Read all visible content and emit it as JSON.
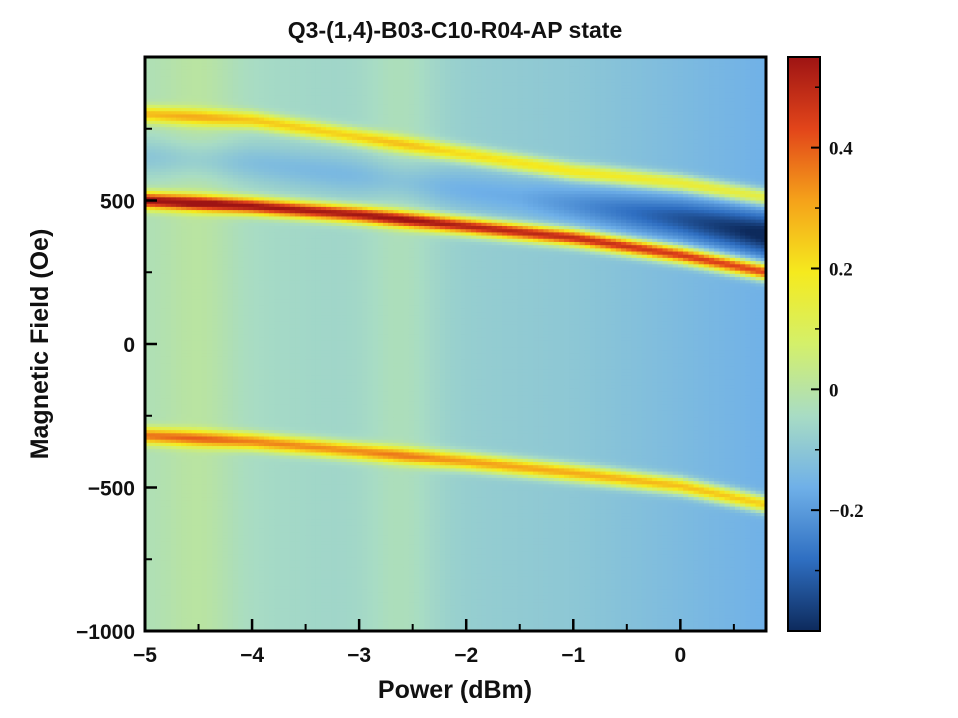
{
  "chart_data": {
    "type": "heatmap",
    "title": "Q3-(1,4)-B03-C10-R04-AP state",
    "xlabel": "Power (dBm)",
    "ylabel": "Magnetic Field (Oe)",
    "xlim": [
      -5,
      0.8
    ],
    "ylim": [
      -1000,
      1000
    ],
    "x_ticks": [
      -5,
      -4,
      -3,
      -2,
      -1,
      0
    ],
    "x_tick_labels": [
      "−5",
      "−4",
      "−3",
      "−2",
      "−1",
      "0"
    ],
    "y_ticks": [
      -1000,
      -500,
      0,
      500
    ],
    "y_tick_labels": [
      "−1000",
      "−500",
      "0",
      "500"
    ],
    "colorbar": {
      "range": [
        -0.4,
        0.55
      ],
      "ticks": [
        -0.2,
        0,
        0.2,
        0.4
      ],
      "tick_labels": [
        "−0.2",
        "0",
        "0.2",
        "0.4"
      ],
      "colormap": "jet",
      "colors": [
        "#0d2a5c",
        "#2f6fc2",
        "#6fb0e8",
        "#a8dcc4",
        "#d4f06a",
        "#f5ea1e",
        "#f5a21a",
        "#e2451a",
        "#9e1414"
      ]
    },
    "background_level": -0.1,
    "bright_columns_dBm": [
      -4.5,
      -2.6
    ],
    "bands": [
      {
        "name": "upper resonance",
        "peak": 0.2,
        "points": [
          [
            -5,
            800
          ],
          [
            -4,
            780
          ],
          [
            -3,
            720
          ],
          [
            -2,
            660
          ],
          [
            -1,
            600
          ],
          [
            0,
            560
          ],
          [
            0.8,
            510
          ]
        ]
      },
      {
        "name": "main resonance",
        "peak": 0.5,
        "points": [
          [
            -5,
            500
          ],
          [
            -4,
            480
          ],
          [
            -3,
            450
          ],
          [
            -2,
            410
          ],
          [
            -1,
            370
          ],
          [
            0,
            310
          ],
          [
            0.8,
            250
          ]
        ]
      },
      {
        "name": "lower resonance",
        "peak": 0.3,
        "points": [
          [
            -5,
            -320
          ],
          [
            -4,
            -340
          ],
          [
            -3,
            -375
          ],
          [
            -2,
            -410
          ],
          [
            -1,
            -450
          ],
          [
            0,
            -495
          ],
          [
            0.8,
            -560
          ]
        ]
      }
    ]
  }
}
